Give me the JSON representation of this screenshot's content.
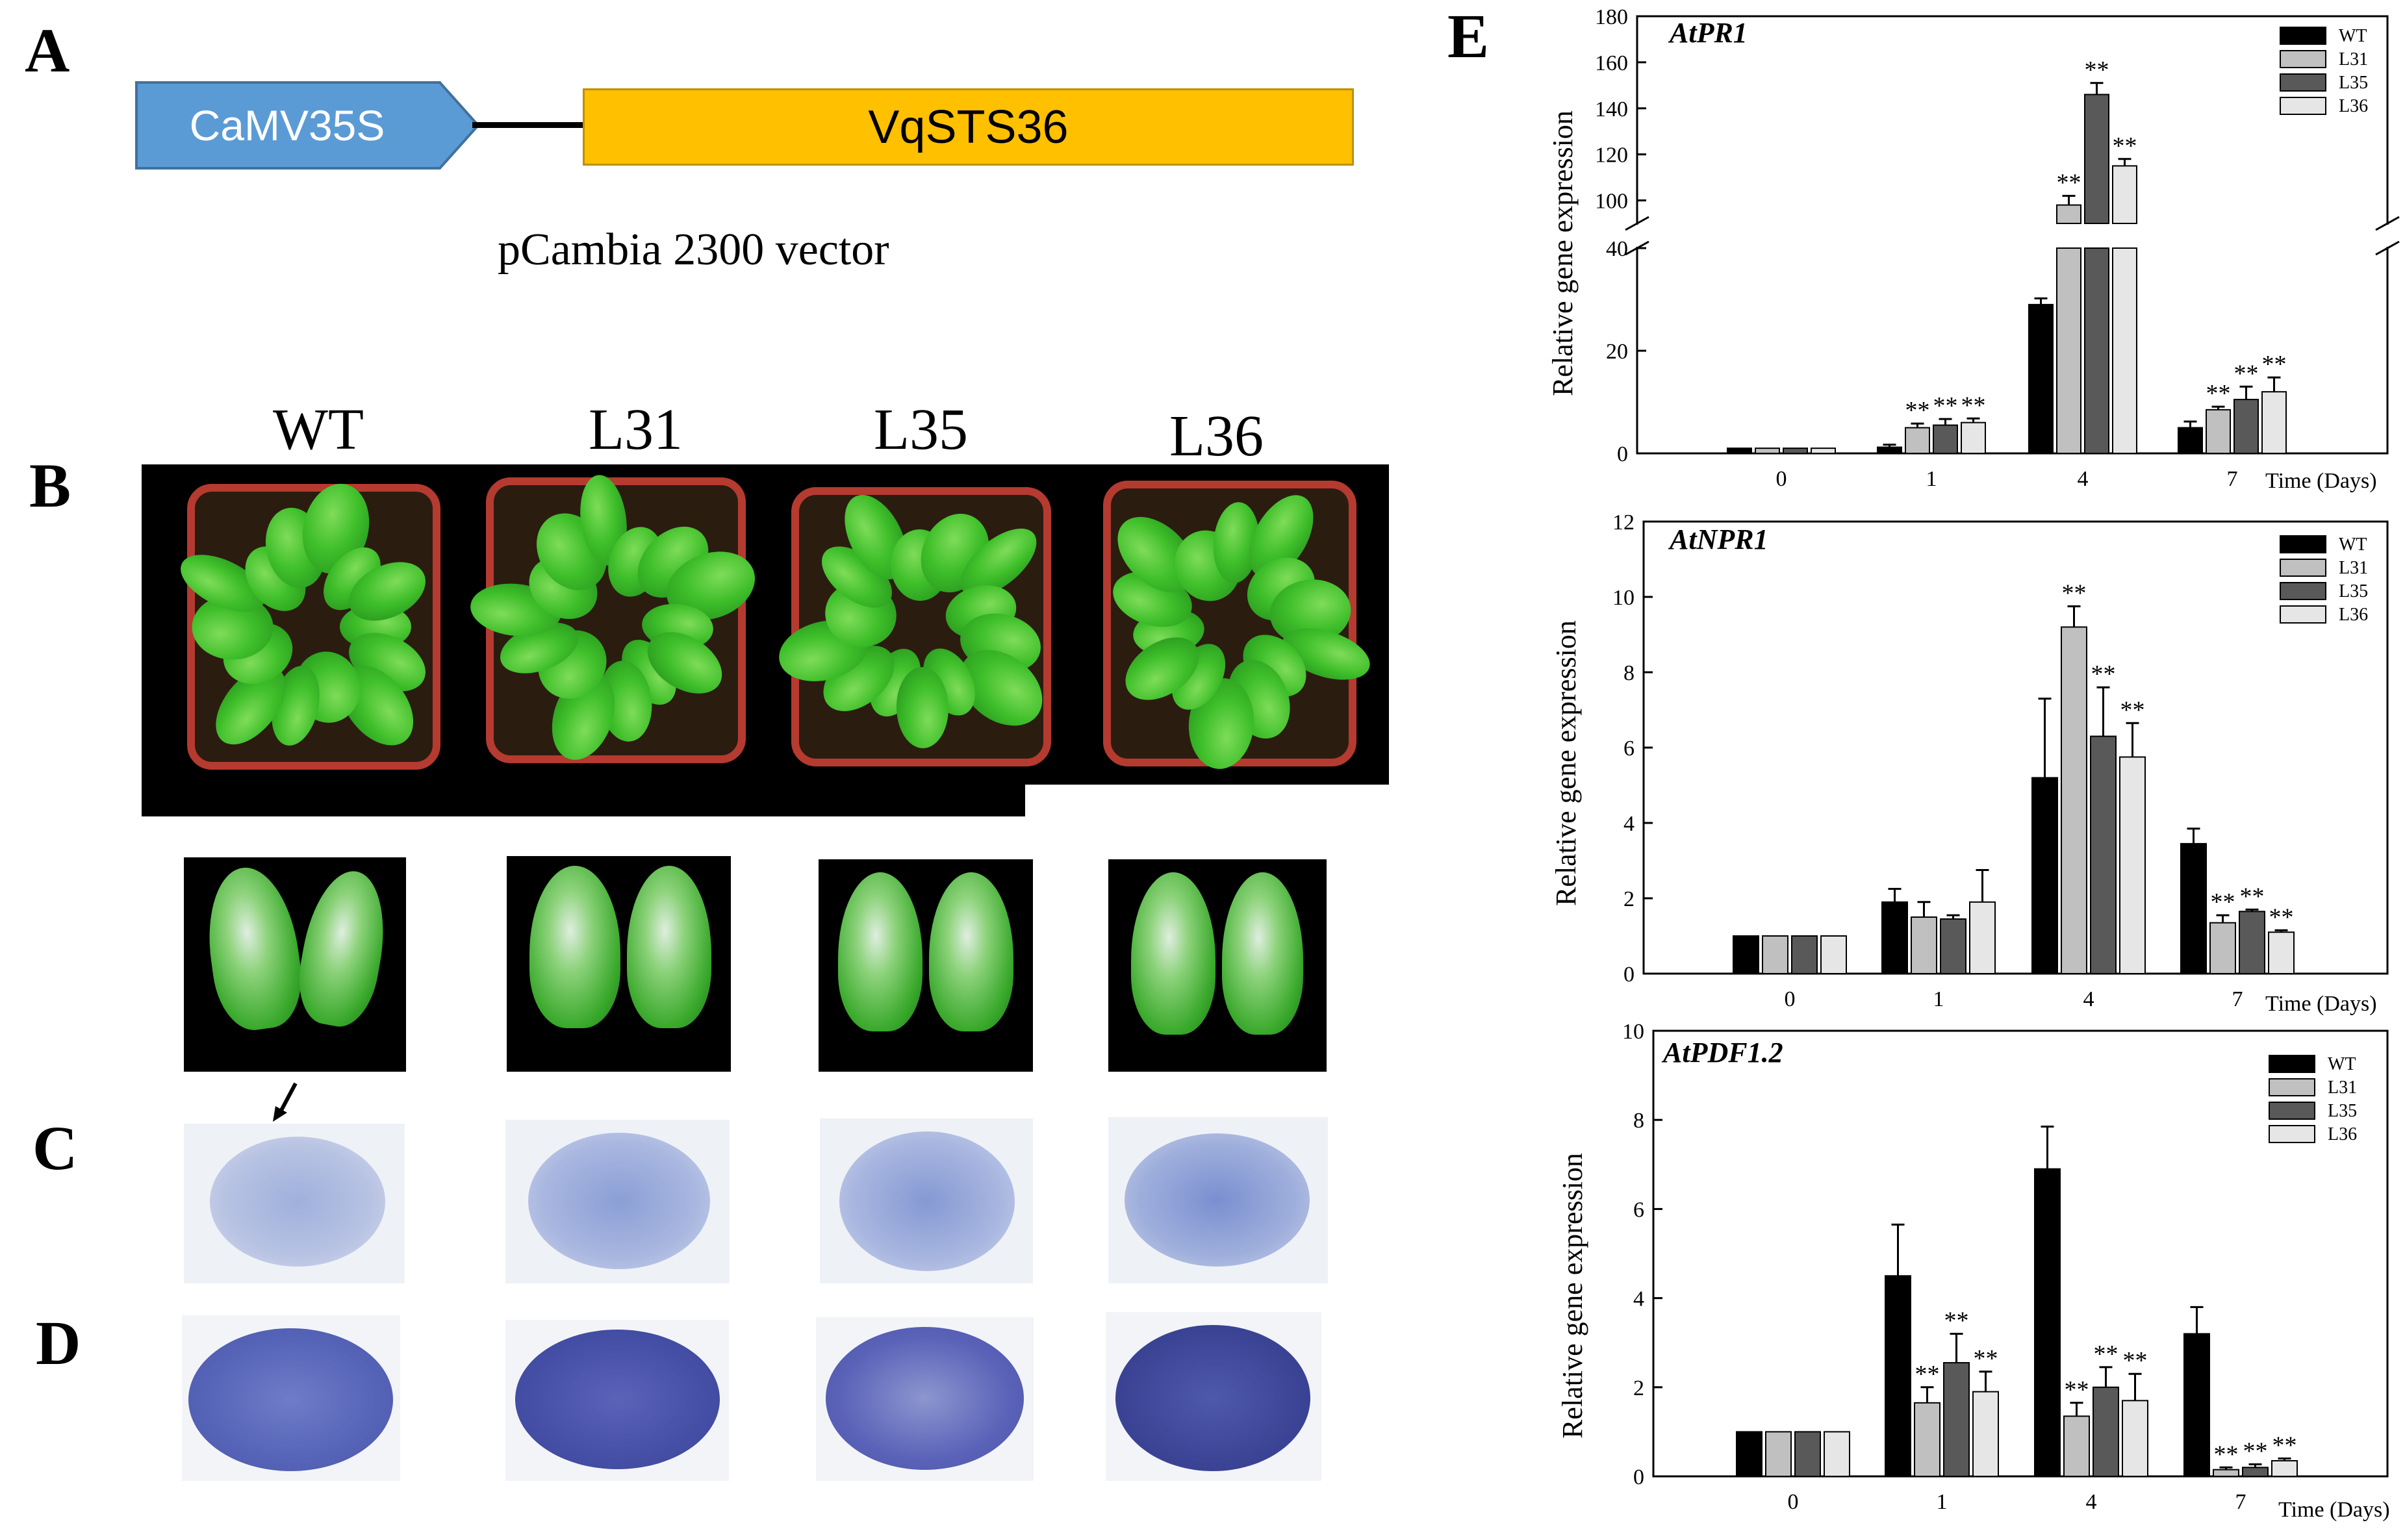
{
  "panels": {
    "a": "A",
    "b": "B",
    "c": "C",
    "d": "D",
    "e": "E"
  },
  "construct": {
    "promoter": "CaMV35S",
    "gene": "VqSTS36",
    "vector": "pCambia 2300 vector",
    "promoter_color": "#5b9bd5",
    "gene_color": "#ffc000"
  },
  "genotypes": [
    "WT",
    "L31",
    "L35",
    "L36"
  ],
  "chart_data": [
    {
      "type": "bar",
      "title": "AtPR1",
      "ylabel": "Relative gene expression",
      "xlabel": "Time (Days)",
      "categories": [
        "0",
        "1",
        "4",
        "7"
      ],
      "broken_axis": true,
      "ylim_lower": [
        0,
        40
      ],
      "ylim_upper": [
        90,
        180
      ],
      "yticks_lower": [
        0,
        20,
        40
      ],
      "yticks_upper": [
        100,
        120,
        140,
        160,
        180
      ],
      "legend": "top-right",
      "series": [
        {
          "name": "WT",
          "color": "#000000",
          "values": [
            1,
            1.2,
            29,
            5
          ],
          "errors": [
            0,
            0.5,
            1.2,
            1.2
          ],
          "sig": [
            "",
            "",
            "",
            ""
          ]
        },
        {
          "name": "L31",
          "color": "#c0c0c0",
          "values": [
            1,
            5,
            98,
            8.5
          ],
          "errors": [
            0,
            0.8,
            4,
            0.6
          ],
          "sig": [
            "",
            "**",
            "**",
            "**"
          ]
        },
        {
          "name": "L35",
          "color": "#595959",
          "values": [
            1,
            5.5,
            146,
            10.5
          ],
          "errors": [
            0,
            1.2,
            5,
            2.5
          ],
          "sig": [
            "",
            "**",
            "**",
            "**"
          ]
        },
        {
          "name": "L36",
          "color": "#e6e6e6",
          "values": [
            1,
            6,
            115,
            12
          ],
          "errors": [
            0,
            0.8,
            3,
            2.8
          ],
          "sig": [
            "",
            "**",
            "**",
            "**"
          ]
        }
      ]
    },
    {
      "type": "bar",
      "title": "AtNPR1",
      "ylabel": "Relative gene expression",
      "xlabel": "Time (Days)",
      "categories": [
        "0",
        "1",
        "4",
        "7"
      ],
      "ylim": [
        0,
        12
      ],
      "yticks": [
        0,
        2,
        4,
        6,
        8,
        10,
        12
      ],
      "legend": "top-right",
      "series": [
        {
          "name": "WT",
          "color": "#000000",
          "values": [
            1,
            1.9,
            5.2,
            3.45
          ],
          "errors": [
            0,
            0.35,
            2.1,
            0.4
          ],
          "sig": [
            "",
            "",
            "",
            ""
          ]
        },
        {
          "name": "L31",
          "color": "#c0c0c0",
          "values": [
            1,
            1.5,
            9.2,
            1.35
          ],
          "errors": [
            0,
            0.4,
            0.55,
            0.2
          ],
          "sig": [
            "",
            "",
            "**",
            "**"
          ]
        },
        {
          "name": "L35",
          "color": "#595959",
          "values": [
            1,
            1.45,
            6.3,
            1.65
          ],
          "errors": [
            0,
            0.1,
            1.3,
            0.05
          ],
          "sig": [
            "",
            "",
            "**",
            "**"
          ]
        },
        {
          "name": "L36",
          "color": "#e6e6e6",
          "values": [
            1,
            1.9,
            5.75,
            1.1
          ],
          "errors": [
            0,
            0.85,
            0.9,
            0.05
          ],
          "sig": [
            "",
            "",
            "**",
            "**"
          ]
        }
      ]
    },
    {
      "type": "bar",
      "title": "AtPDF1.2",
      "ylabel": "Relative gene expression",
      "xlabel": "Time (Days)",
      "categories": [
        "0",
        "1",
        "4",
        "7"
      ],
      "ylim": [
        0,
        10
      ],
      "yticks": [
        0,
        2,
        4,
        6,
        8,
        10
      ],
      "legend": "top-right",
      "series": [
        {
          "name": "WT",
          "color": "#000000",
          "values": [
            1,
            4.5,
            6.9,
            3.2
          ],
          "errors": [
            0,
            1.15,
            0.95,
            0.6
          ],
          "sig": [
            "",
            "",
            "",
            ""
          ]
        },
        {
          "name": "L31",
          "color": "#c0c0c0",
          "values": [
            1,
            1.65,
            1.35,
            0.15
          ],
          "errors": [
            0,
            0.35,
            0.3,
            0.05
          ],
          "sig": [
            "",
            "**",
            "**",
            "**"
          ]
        },
        {
          "name": "L35",
          "color": "#595959",
          "values": [
            1,
            2.55,
            2.0,
            0.2
          ],
          "errors": [
            0,
            0.65,
            0.45,
            0.07
          ],
          "sig": [
            "",
            "**",
            "**",
            "**"
          ]
        },
        {
          "name": "L36",
          "color": "#e6e6e6",
          "values": [
            1,
            1.9,
            1.7,
            0.35
          ],
          "errors": [
            0,
            0.45,
            0.6,
            0.05
          ],
          "sig": [
            "",
            "**",
            "**",
            "**"
          ]
        }
      ]
    }
  ]
}
